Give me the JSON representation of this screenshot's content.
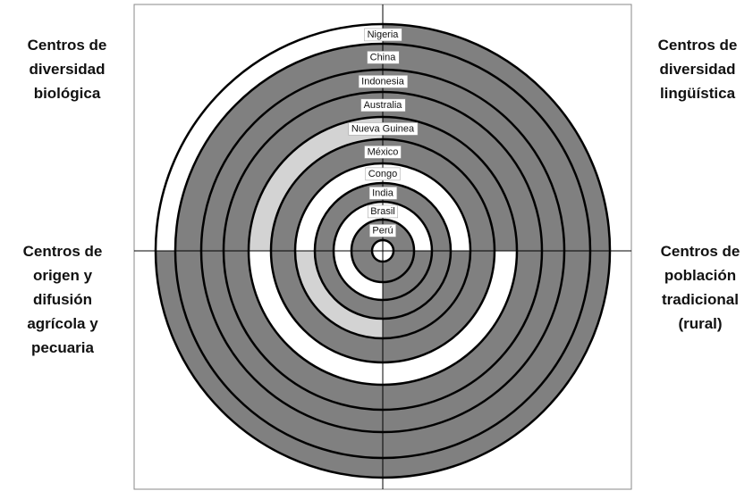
{
  "quadrant_labels": {
    "top_left": [
      "Centros de",
      "diversidad",
      "biológica"
    ],
    "top_right": [
      "Centros de",
      "diversidad",
      "lingüística"
    ],
    "bottom_left": [
      "Centros de",
      "origen y",
      "difusión",
      "agrícola y",
      "pecuaria"
    ],
    "bottom_right": [
      "Centros de",
      "población",
      "tradicional",
      "(rural)"
    ]
  },
  "rings": [
    {
      "label": "Nigeria",
      "colors": [
        "#ffffff",
        "#808080",
        "#808080",
        "#808080"
      ]
    },
    {
      "label": "China",
      "colors": [
        "#808080",
        "#808080",
        "#808080",
        "#808080"
      ]
    },
    {
      "label": "Indonesia",
      "colors": [
        "#808080",
        "#808080",
        "#808080",
        "#808080"
      ]
    },
    {
      "label": "Australia",
      "colors": [
        "#808080",
        "#808080",
        "#808080",
        "#808080"
      ]
    },
    {
      "label": "Nueva Guinea",
      "colors": [
        "#d3d3d3",
        "#808080",
        "#ffffff",
        "#ffffff"
      ]
    },
    {
      "label": "México",
      "colors": [
        "#808080",
        "#808080",
        "#808080",
        "#808080"
      ]
    },
    {
      "label": "Congo",
      "colors": [
        "#ffffff",
        "#ffffff",
        "#d3d3d3",
        "#808080"
      ]
    },
    {
      "label": "India",
      "colors": [
        "#808080",
        "#808080",
        "#808080",
        "#808080"
      ]
    },
    {
      "label": "Brasil",
      "colors": [
        "#ffffff",
        "#ffffff",
        "#ffffff",
        "#808080"
      ]
    },
    {
      "label": "Perú",
      "colors": [
        "#808080",
        "#808080",
        "#808080",
        "#808080"
      ]
    }
  ]
}
